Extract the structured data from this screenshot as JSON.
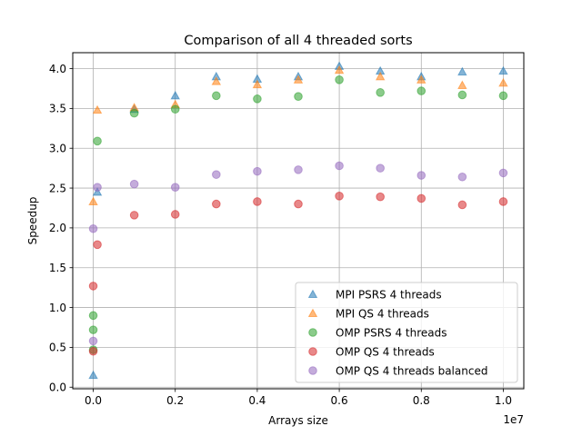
{
  "chart_data": {
    "type": "scatter",
    "title": "Comparison of all 4 threaded sorts",
    "xlabel": "Arrays size",
    "ylabel": "Speedup",
    "x_offset_label": "1e7",
    "xlim": [
      -0.05,
      1.05
    ],
    "ylim": [
      -0.02,
      4.2
    ],
    "x_unit_note": "x values in units of 1e7",
    "x_ticks": [
      0.0,
      0.2,
      0.4,
      0.6,
      0.8,
      1.0
    ],
    "x_tick_labels": [
      "0.0",
      "0.2",
      "0.4",
      "0.6",
      "0.8",
      "1.0"
    ],
    "y_ticks": [
      0.0,
      0.5,
      1.0,
      1.5,
      2.0,
      2.5,
      3.0,
      3.5,
      4.0
    ],
    "y_tick_labels": [
      "0.0",
      "0.5",
      "1.0",
      "1.5",
      "2.0",
      "2.5",
      "3.0",
      "3.5",
      "4.0"
    ],
    "grid": true,
    "legend_position": "lower-right",
    "series": [
      {
        "name": "MPI PSRS 4 threads",
        "marker": "triangle",
        "color": "#1f77b4",
        "points": [
          [
            0.0,
            0.15
          ],
          [
            0.01,
            2.45
          ],
          [
            0.1,
            3.49
          ],
          [
            0.2,
            3.66
          ],
          [
            0.3,
            3.9
          ],
          [
            0.4,
            3.87
          ],
          [
            0.5,
            3.9
          ],
          [
            0.6,
            4.03
          ],
          [
            0.7,
            3.97
          ],
          [
            0.8,
            3.9
          ],
          [
            0.9,
            3.96
          ],
          [
            1.0,
            3.97
          ]
        ]
      },
      {
        "name": "MPI QS 4 threads",
        "marker": "triangle",
        "color": "#ff7f0e",
        "points": [
          [
            0.0,
            2.33
          ],
          [
            0.01,
            3.48
          ],
          [
            0.1,
            3.51
          ],
          [
            0.2,
            3.55
          ],
          [
            0.3,
            3.84
          ],
          [
            0.4,
            3.8
          ],
          [
            0.5,
            3.86
          ],
          [
            0.6,
            3.98
          ],
          [
            0.7,
            3.9
          ],
          [
            0.8,
            3.86
          ],
          [
            0.9,
            3.79
          ],
          [
            1.0,
            3.82
          ]
        ]
      },
      {
        "name": "OMP PSRS 4 threads",
        "marker": "circle",
        "color": "#2ca02c",
        "points": [
          [
            0.0,
            0.47
          ],
          [
            0.0,
            0.72
          ],
          [
            0.0,
            0.9
          ],
          [
            0.01,
            3.09
          ],
          [
            0.1,
            3.44
          ],
          [
            0.2,
            3.49
          ],
          [
            0.3,
            3.66
          ],
          [
            0.4,
            3.62
          ],
          [
            0.5,
            3.65
          ],
          [
            0.6,
            3.86
          ],
          [
            0.7,
            3.7
          ],
          [
            0.8,
            3.72
          ],
          [
            0.9,
            3.67
          ],
          [
            1.0,
            3.66
          ]
        ]
      },
      {
        "name": "OMP QS 4 threads",
        "marker": "circle",
        "color": "#d62728",
        "points": [
          [
            0.0,
            0.45
          ],
          [
            0.0,
            1.27
          ],
          [
            0.01,
            1.79
          ],
          [
            0.1,
            2.16
          ],
          [
            0.2,
            2.17
          ],
          [
            0.3,
            2.3
          ],
          [
            0.4,
            2.33
          ],
          [
            0.5,
            2.3
          ],
          [
            0.6,
            2.4
          ],
          [
            0.7,
            2.39
          ],
          [
            0.8,
            2.37
          ],
          [
            0.9,
            2.29
          ],
          [
            1.0,
            2.33
          ]
        ]
      },
      {
        "name": "OMP QS 4 threads balanced",
        "marker": "circle",
        "color": "#9467bd",
        "points": [
          [
            0.0,
            0.58
          ],
          [
            0.0,
            1.99
          ],
          [
            0.01,
            2.51
          ],
          [
            0.1,
            2.55
          ],
          [
            0.2,
            2.51
          ],
          [
            0.3,
            2.67
          ],
          [
            0.4,
            2.71
          ],
          [
            0.5,
            2.73
          ],
          [
            0.6,
            2.78
          ],
          [
            0.7,
            2.75
          ],
          [
            0.8,
            2.66
          ],
          [
            0.9,
            2.64
          ],
          [
            1.0,
            2.69
          ]
        ]
      }
    ]
  }
}
